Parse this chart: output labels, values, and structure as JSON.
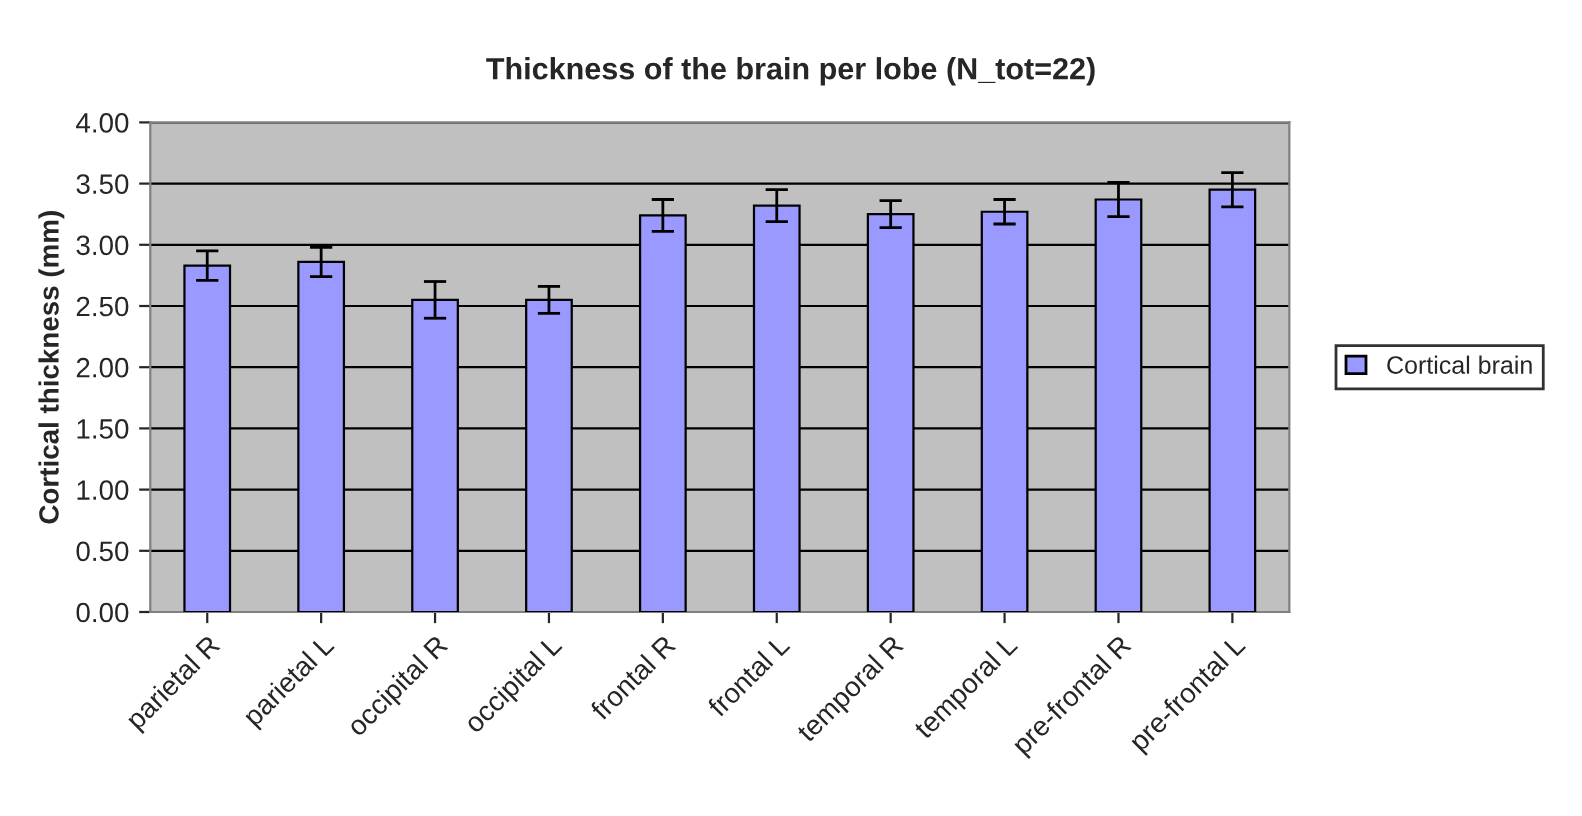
{
  "chart_data": {
    "type": "bar",
    "title": "Thickness of the brain per lobe (N_tot=22)",
    "ylabel": "Cortical thickness (mm)",
    "categories": [
      "parietal R",
      "parietal L",
      "occipital R",
      "occipital L",
      "frontal R",
      "frontal L",
      "temporal R",
      "temporal L",
      "pre-frontal R",
      "pre-frontal L"
    ],
    "series": [
      {
        "name": "Cortical brain",
        "color": "#9999ff",
        "values": [
          2.83,
          2.86,
          2.55,
          2.55,
          3.24,
          3.32,
          3.25,
          3.27,
          3.37,
          3.45
        ],
        "errors": [
          0.12,
          0.12,
          0.15,
          0.11,
          0.13,
          0.13,
          0.11,
          0.1,
          0.14,
          0.14
        ]
      }
    ],
    "ylim": [
      0,
      4
    ],
    "yticks": [
      {
        "value": 0,
        "label": "0.00"
      },
      {
        "value": 0.5,
        "label": "0.50"
      },
      {
        "value": 1,
        "label": "1.00"
      },
      {
        "value": 1.5,
        "label": "1.50"
      },
      {
        "value": 2,
        "label": "2.00"
      },
      {
        "value": 2.5,
        "label": "2.50"
      },
      {
        "value": 3,
        "label": "3.00"
      },
      {
        "value": 3.5,
        "label": "3.50"
      },
      {
        "value": 4,
        "label": "4.00"
      }
    ],
    "grid": "y",
    "legend": "right"
  }
}
